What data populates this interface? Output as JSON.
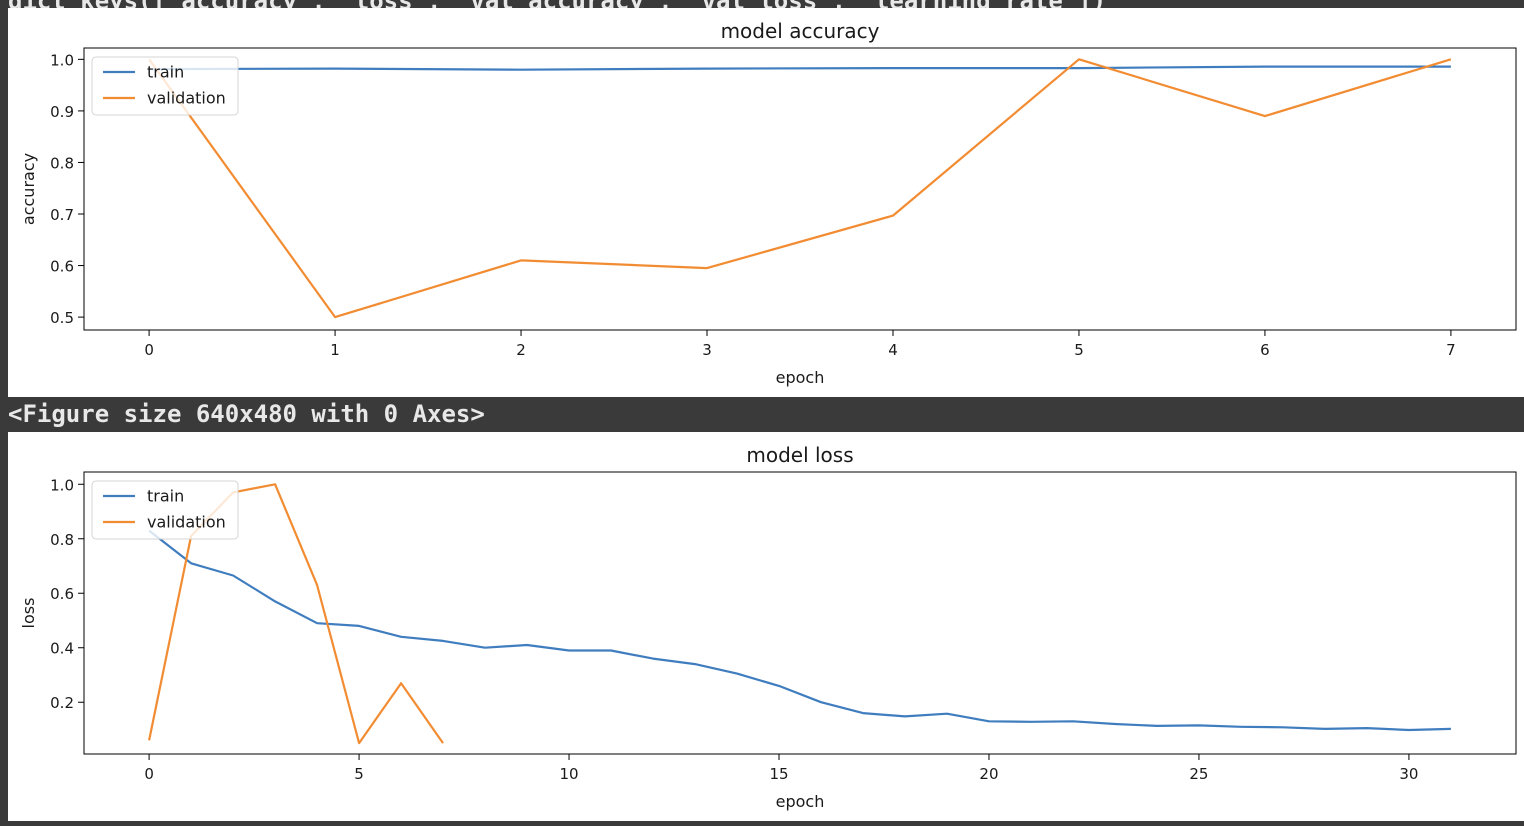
{
  "console": {
    "top_code_fragment": "dict_keys(['accuracy', 'loss', 'val_accuracy', 'val_loss', 'learning_rate'])",
    "figure_message": "<Figure size 640x480 with 0 Axes>"
  },
  "colors": {
    "train": "#3f7dbf",
    "validation": "#f28c33",
    "background": "#3a3a3a"
  },
  "chart_data": [
    {
      "type": "line",
      "title": "model accuracy",
      "xlabel": "epoch",
      "ylabel": "accuracy",
      "xlim": [
        -0.35,
        7.35
      ],
      "ylim": [
        0.475,
        1.022
      ],
      "xticks": [
        0,
        1,
        2,
        3,
        4,
        5,
        6,
        7
      ],
      "yticks": [
        0.5,
        0.6,
        0.7,
        0.8,
        0.9,
        1.0
      ],
      "ytick_labels": [
        "0.5",
        "0.6",
        "0.7",
        "0.8",
        "0.9",
        "1.0"
      ],
      "grid": false,
      "legend_position": "upper left",
      "series": [
        {
          "name": "train",
          "color": "#3f7dbf",
          "x": [
            0,
            1,
            2,
            3,
            4,
            5,
            6,
            7
          ],
          "y": [
            0.981,
            0.982,
            0.98,
            0.982,
            0.983,
            0.983,
            0.986,
            0.986
          ]
        },
        {
          "name": "validation",
          "color": "#f28c33",
          "x": [
            0,
            1,
            2,
            3,
            4,
            5,
            6,
            7
          ],
          "y": [
            1.0,
            0.5,
            0.61,
            0.595,
            0.697,
            1.0,
            0.89,
            1.0
          ]
        }
      ]
    },
    {
      "type": "line",
      "title": "model loss",
      "xlabel": "epoch",
      "ylabel": "loss",
      "xlim": [
        -1.55,
        32.55
      ],
      "ylim": [
        0.01,
        1.045
      ],
      "xticks": [
        0,
        5,
        10,
        15,
        20,
        25,
        30
      ],
      "yticks": [
        0.2,
        0.4,
        0.6,
        0.8,
        1.0
      ],
      "ytick_labels": [
        "0.2",
        "0.4",
        "0.6",
        "0.8",
        "1.0"
      ],
      "grid": false,
      "legend_position": "upper left",
      "series": [
        {
          "name": "train",
          "color": "#3f7dbf",
          "x": [
            0,
            1,
            2,
            3,
            4,
            5,
            6,
            7,
            8,
            9,
            10,
            11,
            12,
            13,
            14,
            15,
            16,
            17,
            18,
            19,
            20,
            21,
            22,
            23,
            24,
            25,
            26,
            27,
            28,
            29,
            30,
            31
          ],
          "y": [
            0.83,
            0.71,
            0.665,
            0.57,
            0.49,
            0.48,
            0.44,
            0.425,
            0.4,
            0.41,
            0.39,
            0.39,
            0.36,
            0.34,
            0.305,
            0.26,
            0.2,
            0.16,
            0.148,
            0.158,
            0.13,
            0.128,
            0.13,
            0.12,
            0.113,
            0.115,
            0.11,
            0.108,
            0.102,
            0.105,
            0.098,
            0.102
          ]
        },
        {
          "name": "validation",
          "color": "#f28c33",
          "x": [
            0,
            1,
            2,
            3,
            4,
            5,
            6,
            7
          ],
          "y": [
            0.06,
            0.81,
            0.97,
            1.0,
            0.63,
            0.05,
            0.27,
            0.05
          ]
        }
      ]
    }
  ]
}
